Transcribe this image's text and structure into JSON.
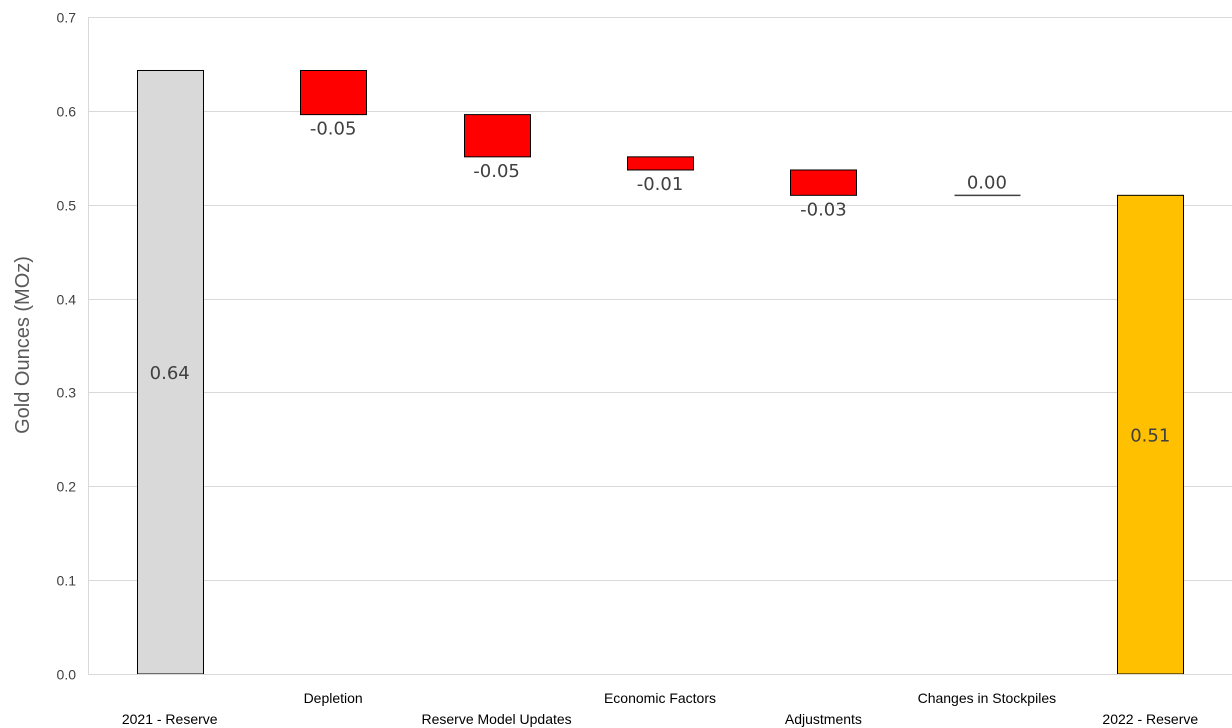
{
  "chart_data": {
    "type": "bar",
    "subtype": "waterfall",
    "title": "",
    "xlabel": "",
    "ylabel": "Gold Ounces (MOz)",
    "ylim": [
      0,
      0.7
    ],
    "yticks": [
      0.0,
      0.1,
      0.2,
      0.3,
      0.4,
      0.5,
      0.6,
      0.7
    ],
    "ytick_labels": [
      "0.0",
      "0.1",
      "0.2",
      "0.3",
      "0.4",
      "0.5",
      "0.6",
      "0.7"
    ],
    "grid": true,
    "legend": "none",
    "categories": [
      "2021 - Reserve",
      "Depletion",
      "Reserve Model Updates",
      "Economic Factors",
      "Adjustments",
      "Changes in Stockpiles",
      "2022 - Reserve"
    ],
    "bars": [
      {
        "category": "2021 - Reserve",
        "kind": "total",
        "start": 0,
        "end": 0.643,
        "label": "0.64",
        "color": "#d9d9d9"
      },
      {
        "category": "Depletion",
        "kind": "change",
        "start": 0.643,
        "end": 0.596,
        "label": "-0.05",
        "color": "#ff0000"
      },
      {
        "category": "Reserve Model Updates",
        "kind": "change",
        "start": 0.596,
        "end": 0.551,
        "label": "-0.05",
        "color": "#ff0000"
      },
      {
        "category": "Economic Factors",
        "kind": "change",
        "start": 0.551,
        "end": 0.537,
        "label": "-0.01",
        "color": "#ff0000"
      },
      {
        "category": "Adjustments",
        "kind": "change",
        "start": 0.537,
        "end": 0.51,
        "label": "-0.03",
        "color": "#ff0000"
      },
      {
        "category": "Changes in Stockpiles",
        "kind": "change",
        "start": 0.51,
        "end": 0.51,
        "label": "0.00",
        "color": "#ff0000"
      },
      {
        "category": "2022 - Reserve",
        "kind": "total",
        "start": 0,
        "end": 0.51,
        "label": "0.51",
        "color": "#ffc000"
      }
    ],
    "colors": {
      "total_start": "#d9d9d9",
      "decrease": "#ff0000",
      "total_end": "#ffc000",
      "grid": "#d9d9d9",
      "text": "#404040"
    }
  }
}
